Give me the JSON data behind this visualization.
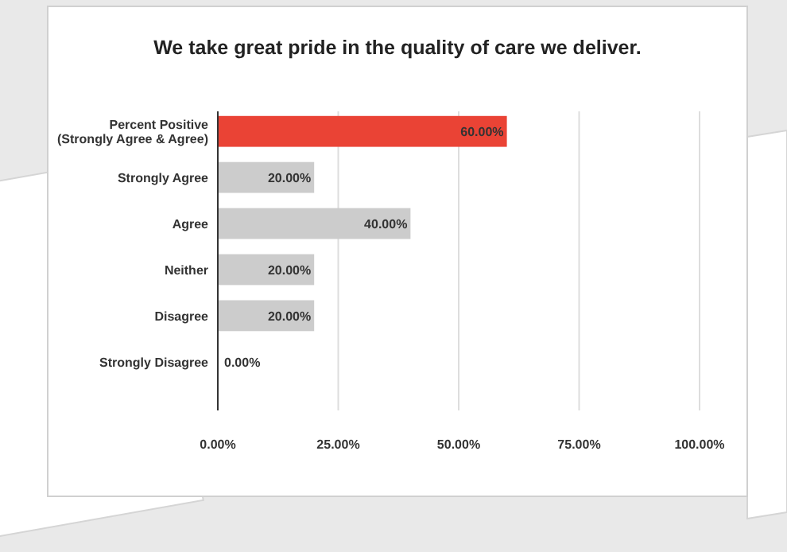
{
  "chart_data": {
    "type": "bar",
    "orientation": "horizontal",
    "title": "We take great pride in the quality of care we deliver.",
    "categories": [
      "Percent Positive\n(Strongly Agree & Agree)",
      "Strongly Agree",
      "Agree",
      "Neither",
      "Disagree",
      "Strongly Disagree"
    ],
    "values": [
      60,
      20,
      40,
      20,
      20,
      0
    ],
    "colors": [
      "#ea4335",
      "#cccccc",
      "#cccccc",
      "#cccccc",
      "#cccccc",
      "#cccccc"
    ],
    "value_labels": [
      "60.00%",
      "20.00%",
      "40.00%",
      "20.00%",
      "20.00%",
      "0.00%"
    ],
    "xlim": [
      0,
      100
    ],
    "xticks": [
      {
        "value": 0,
        "label": "0.00%"
      },
      {
        "value": 25,
        "label": "25.00%"
      },
      {
        "value": 50,
        "label": "50.00%"
      },
      {
        "value": 75,
        "label": "75.00%"
      },
      {
        "value": 100,
        "label": "100.00%"
      }
    ],
    "grid": "x"
  }
}
